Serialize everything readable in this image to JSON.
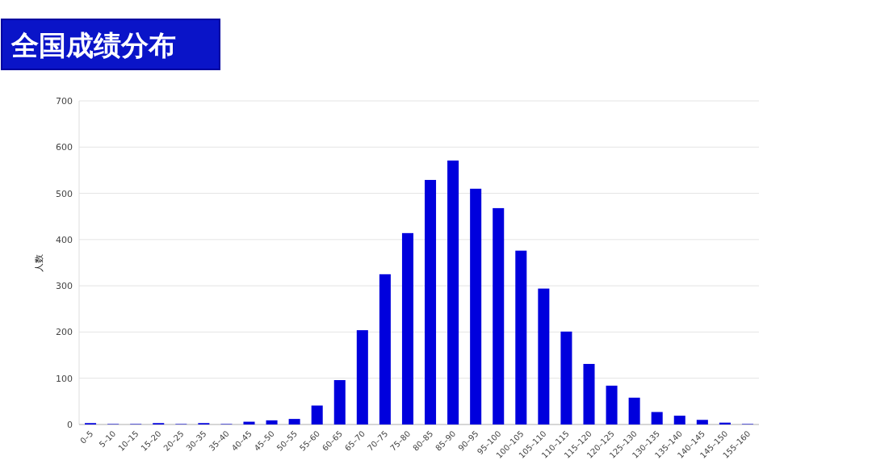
{
  "chart_data": {
    "type": "bar",
    "title": "全国成绩分布",
    "ylabel": "人数",
    "categories": [
      "0–5",
      "5–10",
      "10–15",
      "15–20",
      "20–25",
      "30–35",
      "35–40",
      "40–45",
      "45–50",
      "50–55",
      "55–60",
      "60–65",
      "65–70",
      "70–75",
      "75–80",
      "80–85",
      "85–90",
      "90–95",
      "95–100",
      "100–105",
      "105–110",
      "110–115",
      "115–120",
      "120–125",
      "125–130",
      "130–135",
      "135–140",
      "140–145",
      "145–150",
      "155–160"
    ],
    "values": [
      3,
      1,
      1,
      3,
      1,
      3,
      1,
      6,
      9,
      12,
      41,
      96,
      204,
      325,
      414,
      529,
      571,
      510,
      468,
      376,
      294,
      201,
      131,
      84,
      58,
      27,
      19,
      10,
      4,
      1
    ],
    "color": "#0000dd",
    "ylim": [
      0,
      700
    ],
    "yticks": [
      0,
      100,
      200,
      300,
      400,
      500,
      600,
      700
    ],
    "grid": "y"
  }
}
